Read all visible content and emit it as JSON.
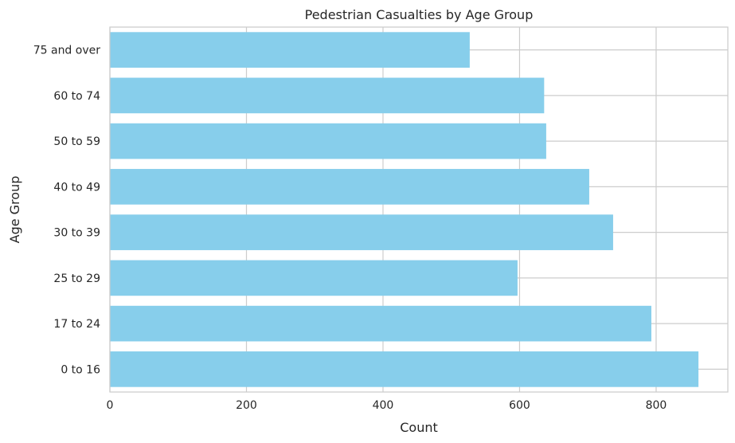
{
  "chart_data": {
    "type": "bar",
    "orientation": "horizontal",
    "title": "Pedestrian Casualties by Age Group",
    "xlabel": "Count",
    "ylabel": "Age Group",
    "categories": [
      "0 to 16",
      "17 to 24",
      "25 to 29",
      "30 to 39",
      "40 to 49",
      "50 to 59",
      "60 to 74",
      "75 and over"
    ],
    "values": [
      862,
      793,
      597,
      737,
      702,
      639,
      636,
      527
    ],
    "xlim": [
      0,
      905
    ],
    "xticks": [
      0,
      200,
      400,
      600,
      800
    ],
    "grid": true,
    "bar_color": "#87CEEB",
    "grid_color": "#cccccc",
    "spine_color": "#cccccc"
  }
}
